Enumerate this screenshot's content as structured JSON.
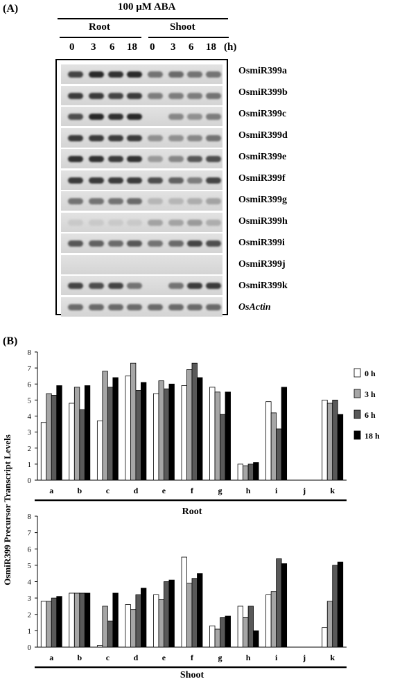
{
  "panel_a": {
    "label": "(A)",
    "treatment": "100 μM ABA",
    "groups": [
      "Root",
      "Shoot"
    ],
    "timepoints": [
      "0",
      "3",
      "6",
      "18"
    ],
    "time_unit": "(h)",
    "genes": [
      "OsmiR399a",
      "OsmiR399b",
      "OsmiR399c",
      "OsmiR399d",
      "OsmiR399e",
      "OsmiR399f",
      "OsmiR399g",
      "OsmiR399h",
      "OsmiR399i",
      "OsmiR399j",
      "OsmiR399k",
      "OsActin"
    ]
  },
  "panel_b": {
    "label": "(B)"
  },
  "chart_data": [
    {
      "type": "bar",
      "title": "",
      "xlabel": "Root",
      "ylabel": "OsmiR399 Precursor Transcript Levels",
      "ylim": [
        0,
        8
      ],
      "categories": [
        "a",
        "b",
        "c",
        "d",
        "e",
        "f",
        "g",
        "h",
        "i",
        "j",
        "k"
      ],
      "series": [
        {
          "name": "0 h",
          "values": [
            3.6,
            4.8,
            3.7,
            6.5,
            5.4,
            5.9,
            5.8,
            1.0,
            4.9,
            0,
            5.0
          ],
          "color": "#ffffff"
        },
        {
          "name": "3 h",
          "values": [
            5.4,
            5.8,
            6.8,
            7.3,
            6.2,
            6.9,
            5.5,
            0.9,
            4.2,
            0,
            4.8
          ],
          "color": "#a6a6a6"
        },
        {
          "name": "6 h",
          "values": [
            5.3,
            4.4,
            5.8,
            5.6,
            5.7,
            7.3,
            4.1,
            1.0,
            3.2,
            0,
            5.0
          ],
          "color": "#595959"
        },
        {
          "name": "18 h",
          "values": [
            5.9,
            5.9,
            6.4,
            6.1,
            6.0,
            6.4,
            5.5,
            1.1,
            5.8,
            0,
            4.1
          ],
          "color": "#000000"
        }
      ],
      "legend": "right",
      "grid": false
    },
    {
      "type": "bar",
      "title": "",
      "xlabel": "Shoot",
      "ylabel": "OsmiR399 Precursor Transcript Levels",
      "ylim": [
        0,
        8
      ],
      "categories": [
        "a",
        "b",
        "c",
        "d",
        "e",
        "f",
        "g",
        "h",
        "i",
        "j",
        "k"
      ],
      "series": [
        {
          "name": "0 h",
          "values": [
            2.8,
            3.3,
            0.1,
            2.6,
            3.2,
            5.5,
            1.3,
            2.5,
            3.2,
            0,
            1.2
          ],
          "color": "#ffffff"
        },
        {
          "name": "3 h",
          "values": [
            2.8,
            3.3,
            2.5,
            2.3,
            2.9,
            3.9,
            1.1,
            1.8,
            3.4,
            0,
            2.8
          ],
          "color": "#a6a6a6"
        },
        {
          "name": "6 h",
          "values": [
            3.0,
            3.3,
            1.6,
            3.2,
            4.0,
            4.2,
            1.8,
            2.5,
            5.4,
            0,
            5.0
          ],
          "color": "#595959"
        },
        {
          "name": "18 h",
          "values": [
            3.1,
            3.3,
            3.3,
            3.6,
            4.1,
            4.5,
            1.9,
            1.0,
            5.1,
            0,
            5.2
          ],
          "color": "#000000"
        }
      ],
      "legend": "none",
      "grid": false
    }
  ],
  "blot_intensity": {
    "note_levels": "0-1 band darkness per lane (8 lanes: root 0,3,6,18 then shoot 0,3,6,18)",
    "rows": [
      [
        0.8,
        0.95,
        0.9,
        0.95,
        0.55,
        0.6,
        0.55,
        0.55
      ],
      [
        0.85,
        0.85,
        0.8,
        0.85,
        0.5,
        0.5,
        0.5,
        0.55
      ],
      [
        0.75,
        0.95,
        0.9,
        0.95,
        0.0,
        0.45,
        0.4,
        0.5
      ],
      [
        0.85,
        0.85,
        0.85,
        0.85,
        0.4,
        0.4,
        0.45,
        0.55
      ],
      [
        0.9,
        0.9,
        0.85,
        0.9,
        0.35,
        0.45,
        0.7,
        0.75
      ],
      [
        0.85,
        0.85,
        0.85,
        0.85,
        0.75,
        0.65,
        0.5,
        0.8
      ],
      [
        0.55,
        0.55,
        0.55,
        0.6,
        0.2,
        0.2,
        0.25,
        0.3
      ],
      [
        0.1,
        0.1,
        0.1,
        0.1,
        0.3,
        0.3,
        0.35,
        0.25
      ],
      [
        0.7,
        0.65,
        0.6,
        0.7,
        0.55,
        0.6,
        0.8,
        0.75
      ],
      [
        0,
        0,
        0,
        0,
        0,
        0,
        0,
        0
      ],
      [
        0.8,
        0.75,
        0.8,
        0.55,
        0.0,
        0.55,
        0.85,
        0.85
      ],
      [
        0.6,
        0.6,
        0.6,
        0.6,
        0.6,
        0.6,
        0.6,
        0.6
      ]
    ]
  }
}
